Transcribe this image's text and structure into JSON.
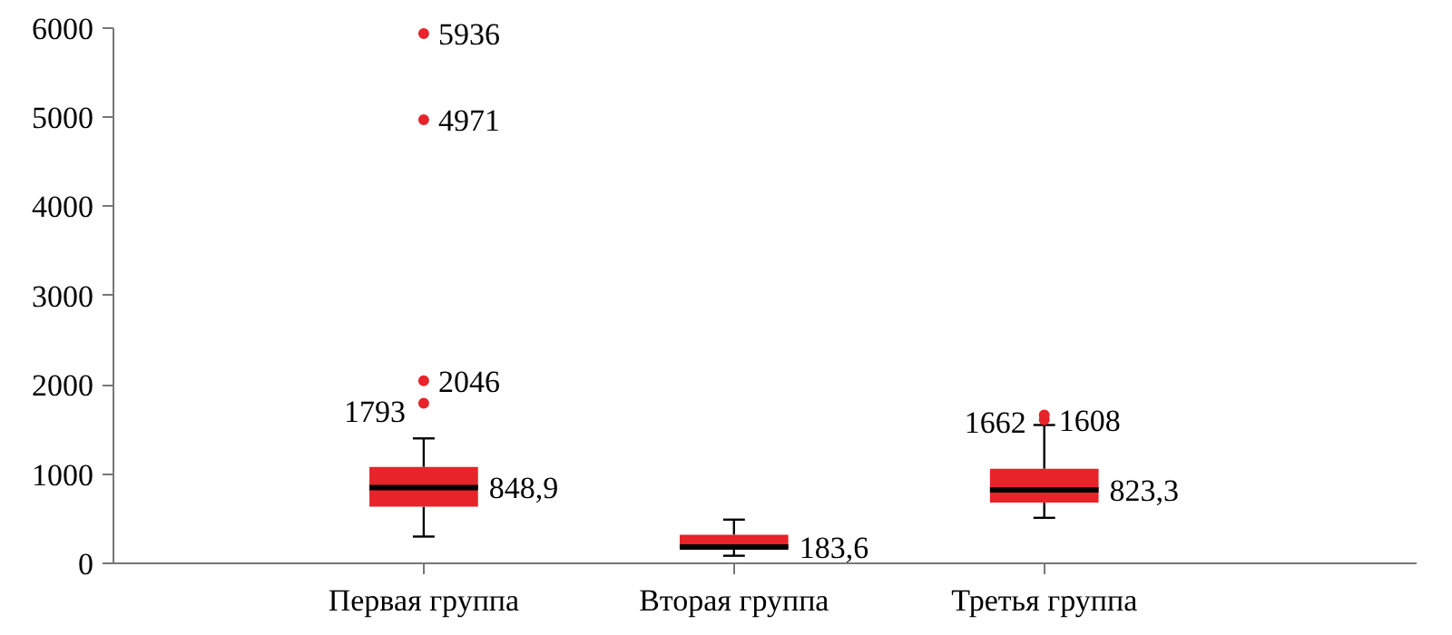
{
  "chart_data": {
    "type": "box",
    "categories": [
      "Первая группа",
      "Вторая группа",
      "Третья группа"
    ],
    "boxes": [
      {
        "low": 300,
        "q1": 635,
        "median": 848.9,
        "q3": 1080,
        "high": 1400
      },
      {
        "low": 85,
        "q1": 170,
        "median": 183.6,
        "q3": 320,
        "high": 490
      },
      {
        "low": 510,
        "q1": 680,
        "median": 823.3,
        "q3": 1060,
        "high": 1550
      }
    ],
    "color": "#e8232a",
    "ylim": [
      0,
      6000
    ],
    "yticks": [
      0,
      1000,
      2000,
      3000,
      4000,
      5000,
      6000
    ],
    "grid": false,
    "series": [
      {
        "type": "scatter",
        "color": "#e8232a",
        "x": [
          "Первая группа",
          "Первая группа",
          "Первая группа",
          "Первая группа",
          "Третья группа",
          "Третья группа"
        ],
        "values": [
          5936,
          4971,
          2046,
          1793,
          1608,
          1662
        ],
        "value_labels": [
          "5936",
          "4971",
          "2046",
          "1793",
          "1608",
          "1662"
        ]
      }
    ],
    "marker": "circle",
    "annotations": [
      {
        "text": "848,9",
        "x": "Первая группа",
        "y": 848.9
      },
      {
        "text": "183,6",
        "x": "Вторая группа",
        "y": 183.6
      },
      {
        "text": "823,3",
        "x": "Третья группа",
        "y": 823.3
      }
    ]
  }
}
